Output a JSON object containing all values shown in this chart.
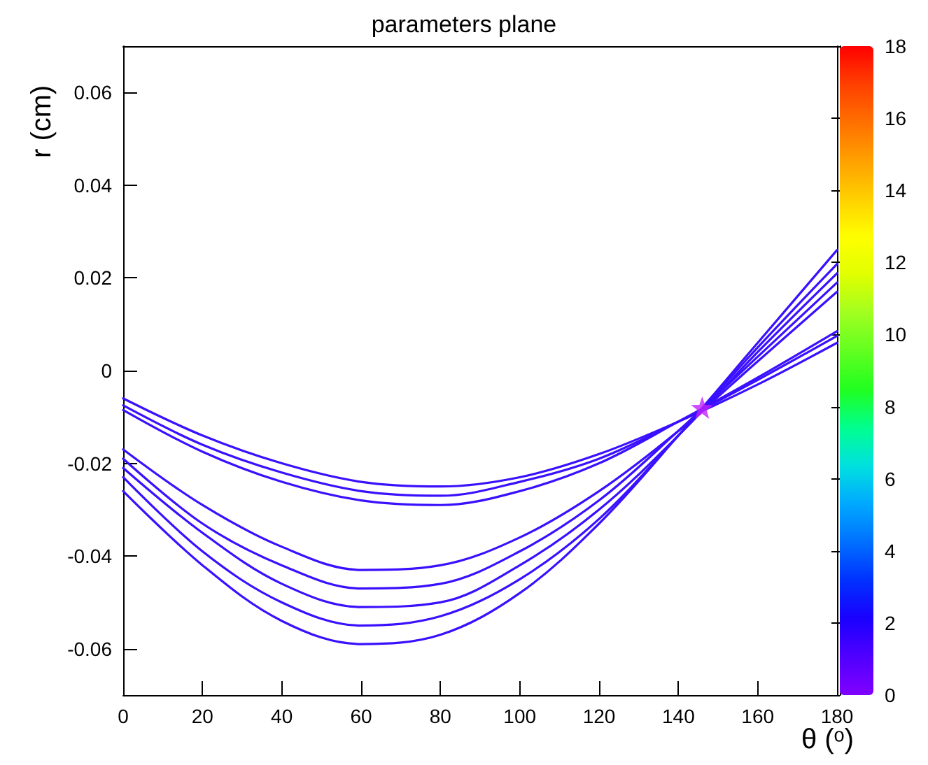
{
  "chart_data": {
    "type": "line",
    "title": "parameters plane",
    "xlabel": "θ (ᵒ)",
    "ylabel": "r (cm)",
    "clabel": null,
    "x": [
      0,
      20,
      40,
      60,
      80,
      100,
      120,
      140,
      160,
      180
    ],
    "series": [
      {
        "color": "#3a10ff",
        "values": [
          -0.006,
          -0.014,
          -0.02,
          -0.024,
          -0.025,
          -0.023,
          -0.018,
          -0.011,
          -0.003,
          0.006
        ]
      },
      {
        "color": "#3a10ff",
        "values": [
          -0.0075,
          -0.016,
          -0.022,
          -0.026,
          -0.027,
          -0.024,
          -0.019,
          -0.011,
          -0.002,
          0.0075
        ]
      },
      {
        "color": "#3a10ff",
        "values": [
          -0.0085,
          -0.0175,
          -0.024,
          -0.028,
          -0.029,
          -0.026,
          -0.02,
          -0.011,
          -0.0015,
          0.0085
        ]
      },
      {
        "color": "#3a10ff",
        "values": [
          -0.017,
          -0.029,
          -0.038,
          -0.043,
          -0.042,
          -0.036,
          -0.026,
          -0.013,
          0.002,
          0.017
        ]
      },
      {
        "color": "#3a10ff",
        "values": [
          -0.019,
          -0.033,
          -0.042,
          -0.047,
          -0.046,
          -0.039,
          -0.028,
          -0.013,
          0.003,
          0.019
        ]
      },
      {
        "color": "#3a10ff",
        "values": [
          -0.021,
          -0.035,
          -0.046,
          -0.051,
          -0.05,
          -0.042,
          -0.03,
          -0.014,
          0.004,
          0.021
        ]
      },
      {
        "color": "#3a10ff",
        "values": [
          -0.023,
          -0.039,
          -0.05,
          -0.055,
          -0.053,
          -0.045,
          -0.032,
          -0.014,
          0.005,
          0.023
        ]
      },
      {
        "color": "#3a10ff",
        "values": [
          -0.026,
          -0.042,
          -0.054,
          -0.059,
          -0.057,
          -0.048,
          -0.033,
          -0.014,
          0.006,
          0.026
        ]
      },
      {
        "type": "scatter",
        "marker": "star",
        "color": "#c020ff",
        "x": [
          146
        ],
        "values": [
          -0.008
        ]
      }
    ],
    "xlim": [
      0,
      180
    ],
    "xticks": [
      0,
      20,
      40,
      60,
      80,
      100,
      120,
      140,
      160,
      180
    ],
    "ylim": [
      -0.07,
      0.07
    ],
    "yticks": [
      -0.06,
      -0.04,
      -0.02,
      0,
      0.02,
      0.04,
      0.06
    ],
    "clim": [
      0,
      18
    ],
    "cticks": [
      0,
      2,
      4,
      6,
      8,
      10,
      12,
      14,
      16,
      18
    ],
    "marker": "none",
    "line_style": "solid",
    "grid": false
  }
}
